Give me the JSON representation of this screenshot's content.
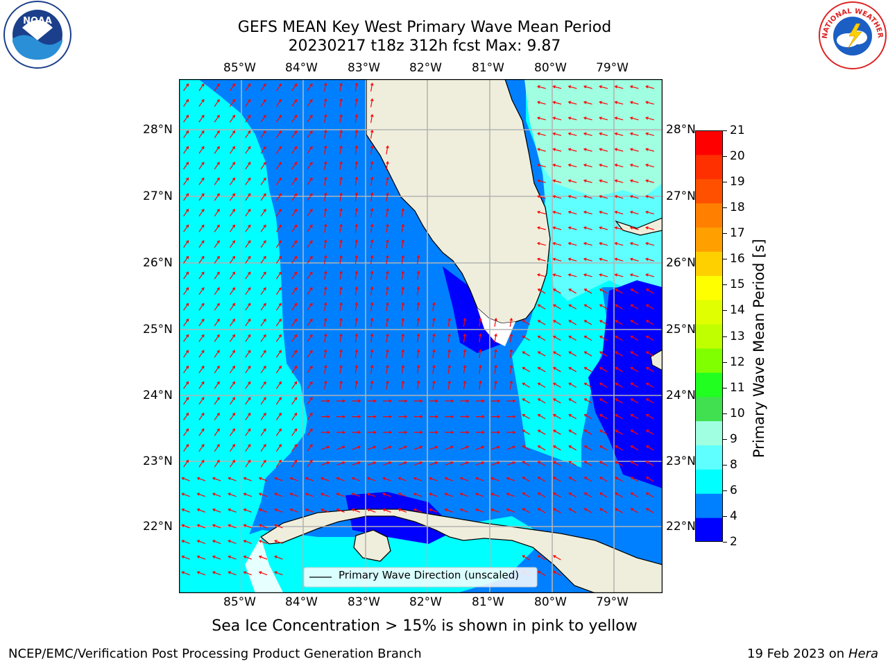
{
  "title": {
    "line1": "GEFS MEAN Key West Primary Wave Mean Period",
    "line2": "20230217 t18z 312h fcst   Max: 9.87"
  },
  "logos": {
    "left": {
      "name": "NOAA",
      "ring_text": "NATIONAL OCEANIC AND ATMOSPHERIC ADMINISTRATION · U.S. DEPARTMENT OF COMMERCE"
    },
    "right": {
      "ring_text": "NATIONAL WEATHER SERVICE"
    }
  },
  "map": {
    "lon_ticks": [
      "85°W",
      "84°W",
      "83°W",
      "82°W",
      "81°W",
      "80°W",
      "79°W"
    ],
    "lat_ticks": [
      "28°N",
      "27°N",
      "26°N",
      "25°N",
      "24°N",
      "23°N",
      "22°N"
    ],
    "legend_label": "Primary Wave Direction (unscaled)",
    "colors": {
      "ocean_base": "#0080ff",
      "band_4_6": "#0080ff",
      "band_6_8": "#00ffff",
      "band_8_9": "#5fffff",
      "band_9_10": "#a0ffe0",
      "band_2_4": "#0000ff",
      "land": "#efeedc",
      "arrows": "#ff0000",
      "grid": "#b4b4b4"
    }
  },
  "colorbar": {
    "label": "Primary Wave Mean Period [s]",
    "ticks": [
      "21",
      "20",
      "19",
      "18",
      "17",
      "16",
      "15",
      "14",
      "13",
      "12",
      "11",
      "10",
      "9",
      "8",
      "6",
      "4",
      "2"
    ],
    "colors": [
      "#0000ff",
      "#0080ff",
      "#00ffff",
      "#5fffff",
      "#a0ffe0",
      "#40e050",
      "#20ff20",
      "#80ff00",
      "#c0ff00",
      "#e0ff00",
      "#ffff00",
      "#ffd000",
      "#ffa000",
      "#ff8000",
      "#ff5000",
      "#ff3000",
      "#ff0000"
    ]
  },
  "note": "Sea Ice Concentration > 15% is shown in pink to yellow",
  "footer": {
    "left": "NCEP/EMC/Verification Post Processing Product Generation Branch",
    "right_date": "19 Feb 2023 on",
    "right_host": "Hera"
  }
}
